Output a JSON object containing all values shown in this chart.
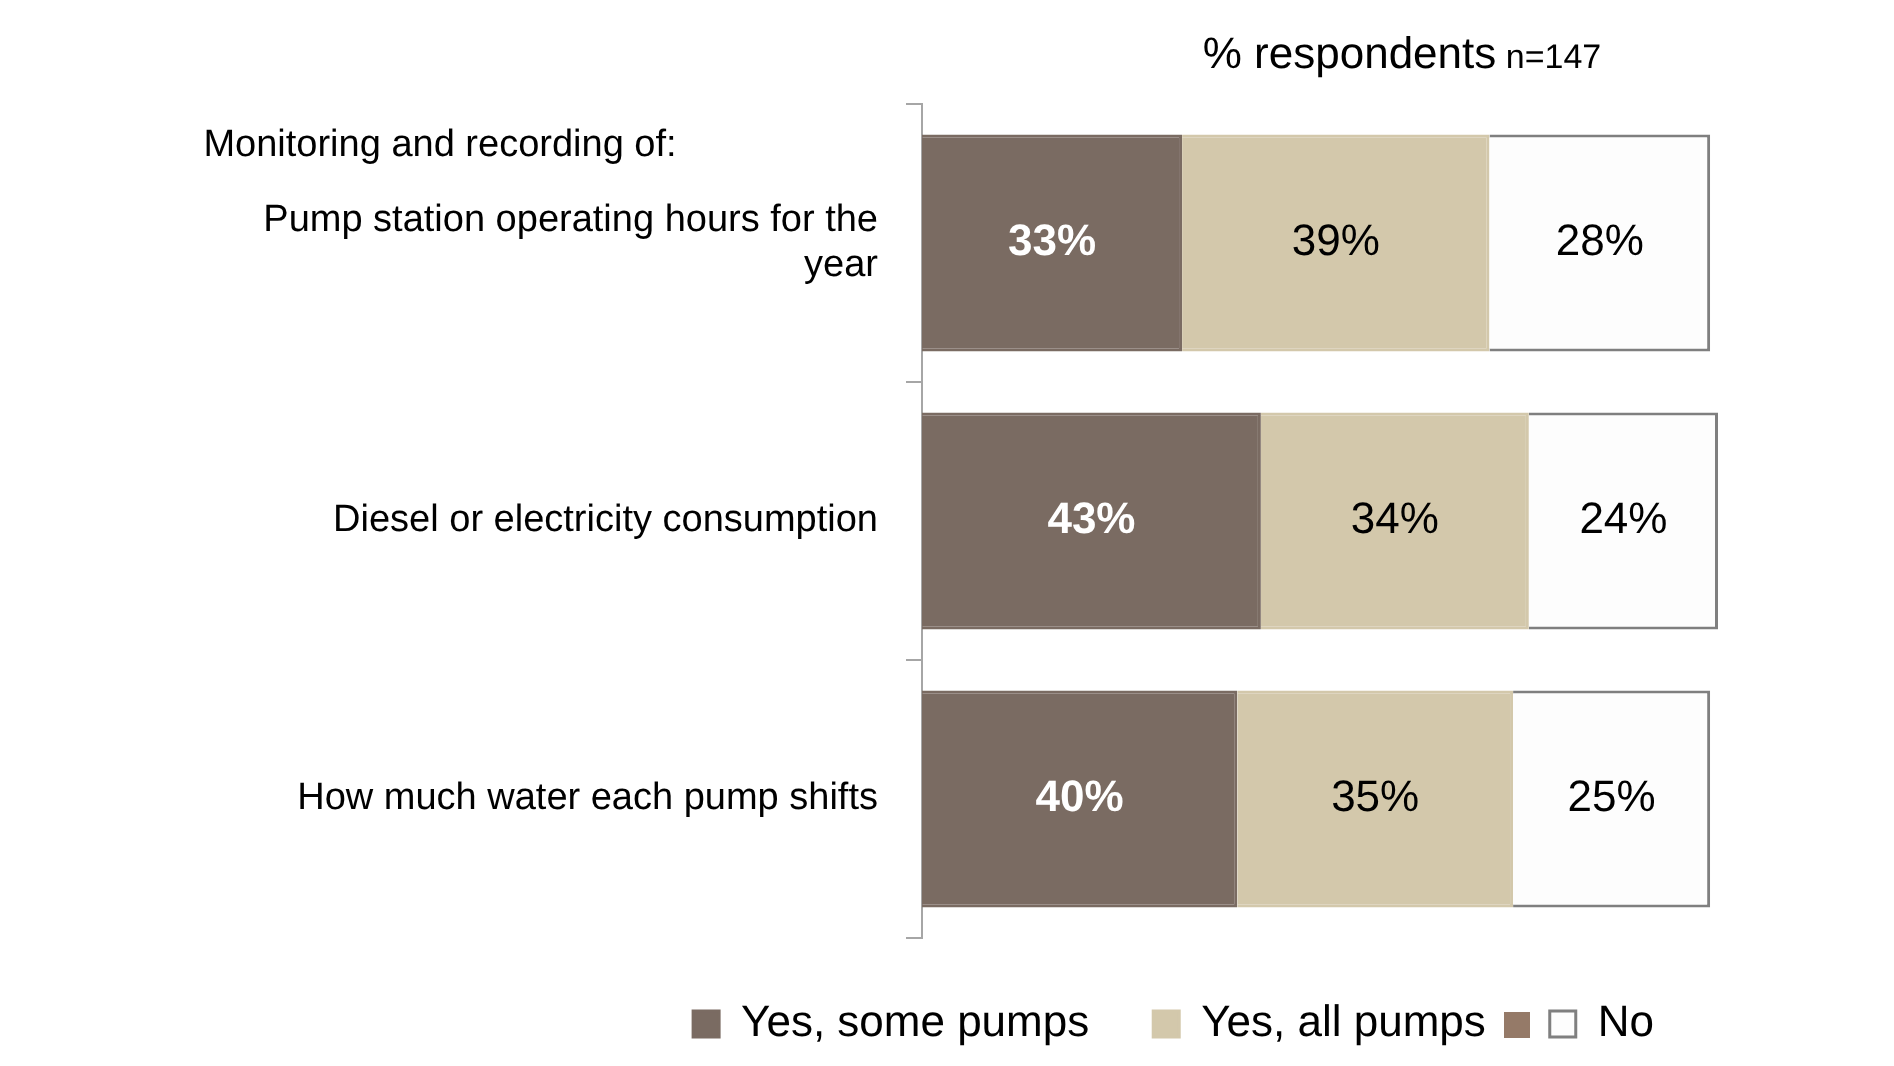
{
  "chart_data": {
    "type": "bar",
    "orientation": "horizontal",
    "stacked": true,
    "title": "% respondents",
    "subtitle": "n=147",
    "annotations": [
      "Monitoring and recording of:"
    ],
    "categories": [
      "Pump station operating hours for the year",
      "Diesel or electricity consumption",
      "How much water each pump shifts"
    ],
    "xlim": [
      0,
      101
    ],
    "tick_labels": "y",
    "legend": "bottom",
    "series": [
      {
        "name": "Yes, some pumps",
        "color": "#7a6b62",
        "values": [
          33,
          43,
          40
        ],
        "value_labels": [
          "33%",
          "43%",
          "40%"
        ]
      },
      {
        "name": "Yes, all pumps",
        "color": "#d3c8ab",
        "values": [
          39,
          34,
          35
        ],
        "value_labels": [
          "39%",
          "34%",
          "35%"
        ]
      },
      {
        "name": "No",
        "color": "#fdfdfd",
        "values": [
          28,
          24,
          25
        ],
        "value_labels": [
          "28%",
          "24%",
          "25%"
        ]
      }
    ]
  }
}
